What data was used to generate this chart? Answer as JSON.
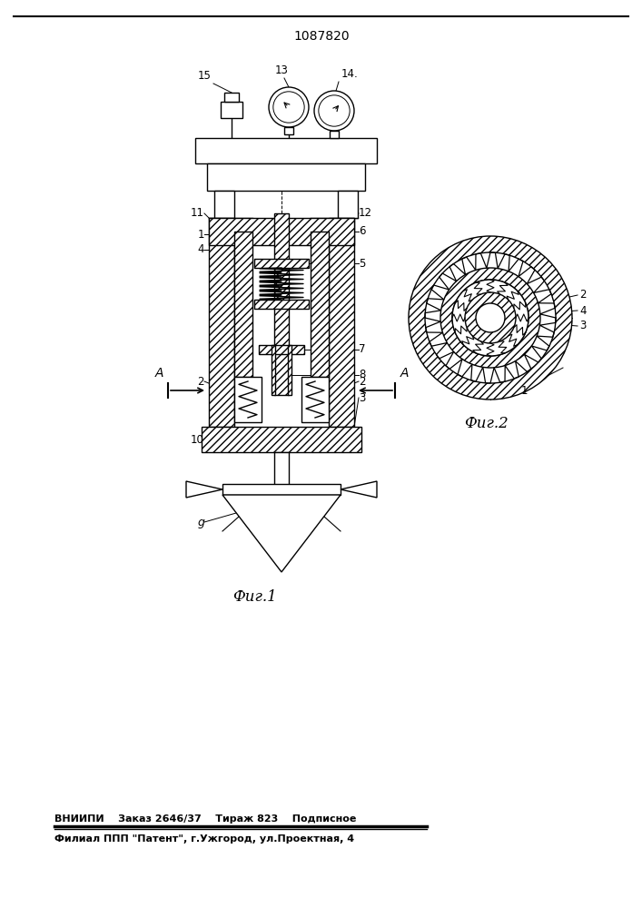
{
  "patent_number": "1087820",
  "fig1_label": "Фиг.1",
  "fig2_label": "Фиг.2",
  "bottom_line1": "ВНИИПИ    Заказ 2646/37    Тираж 823    Подписное",
  "bottom_line2": "Филиал ППП \"Патент\", г.Ужгород, ул.Проектная, 4",
  "bg_color": "#ffffff",
  "line_color": "#000000"
}
